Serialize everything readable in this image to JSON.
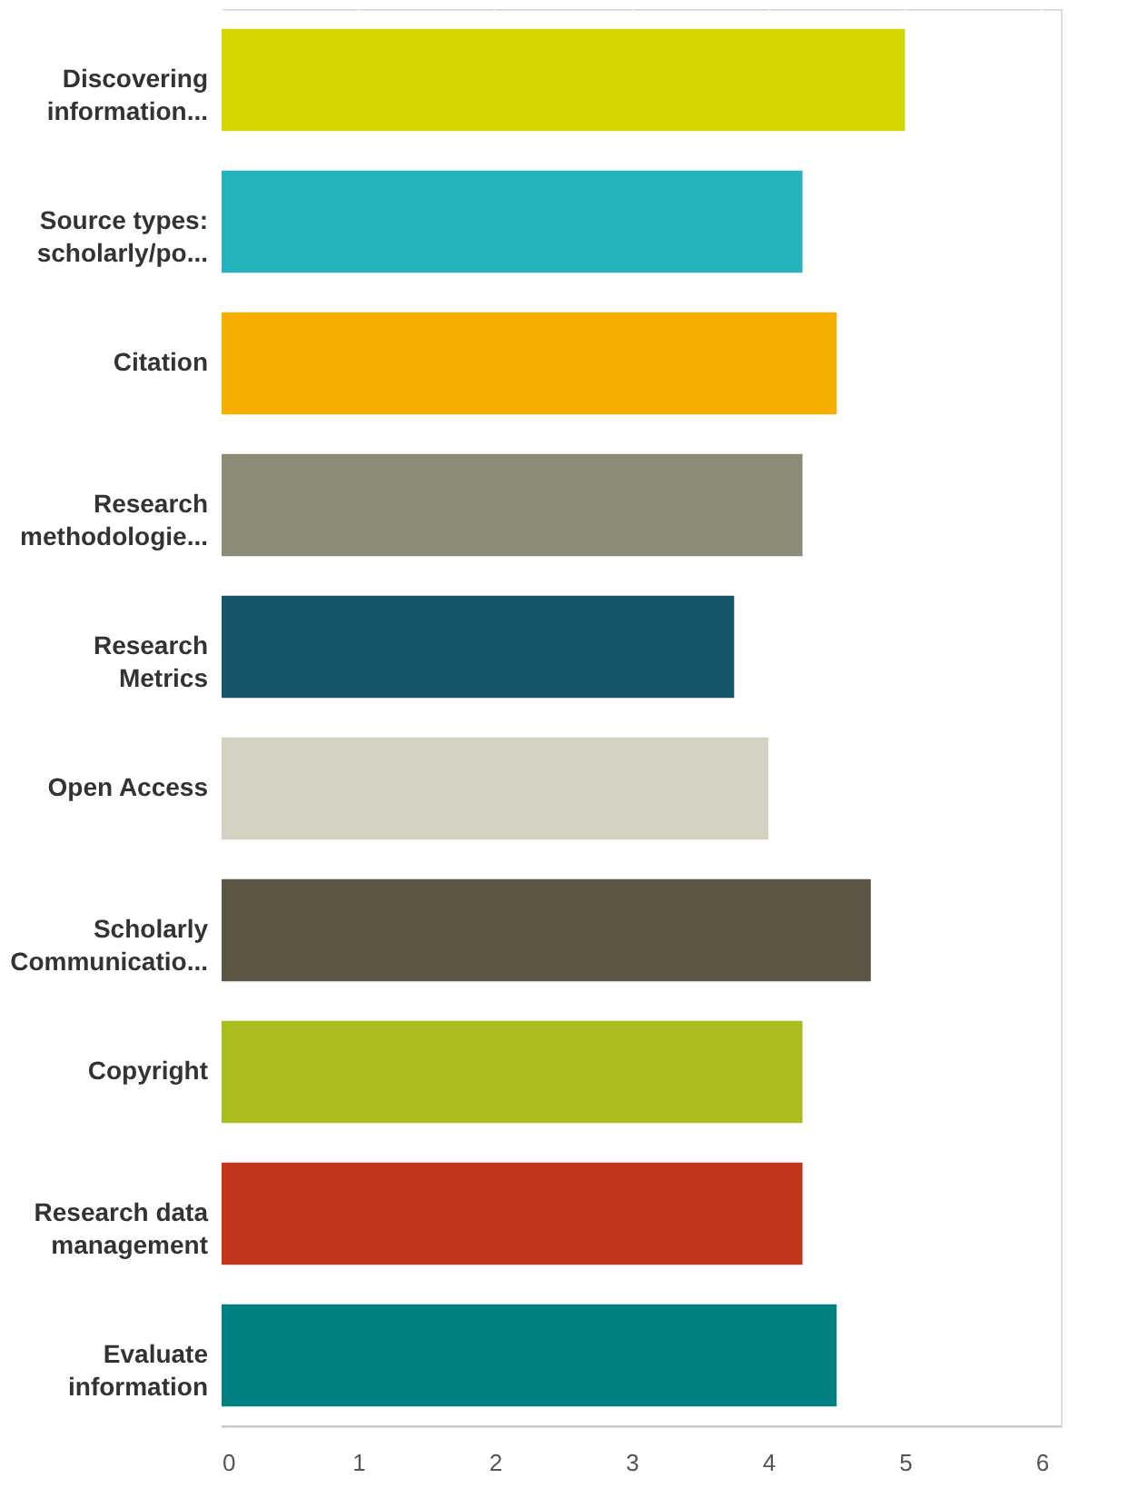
{
  "chart_data": {
    "type": "bar",
    "orientation": "horizontal",
    "categories": [
      "Discovering information...",
      "Source types: scholarly/po...",
      "Citation",
      "Research methodologie...",
      "Research Metrics",
      "Open Access",
      "Scholarly Communicatio...",
      "Copyright",
      "Research data management",
      "Evaluate information"
    ],
    "values": [
      5.0,
      4.25,
      4.5,
      4.25,
      3.75,
      4.0,
      4.75,
      4.25,
      4.25,
      4.5
    ],
    "colors": [
      "#d4d600",
      "#26b4bc",
      "#f5af00",
      "#8c8b78",
      "#17566a",
      "#d5d1c3",
      "#5b5744",
      "#abbc1f",
      "#c3351c",
      "#008080"
    ],
    "xlim": [
      0,
      6.14
    ],
    "xticks": [
      0,
      1,
      2,
      3,
      4,
      5,
      6
    ],
    "grid": true
  }
}
